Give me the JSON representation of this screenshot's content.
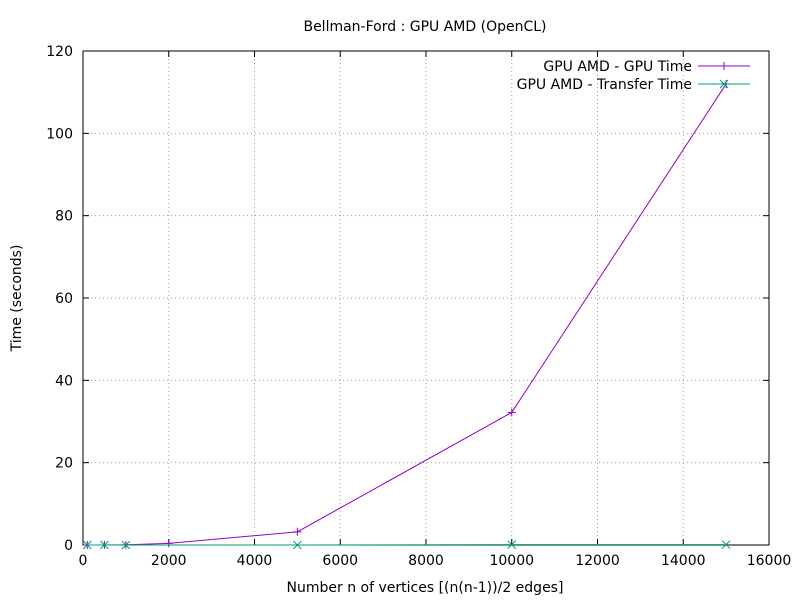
{
  "chart_data": {
    "type": "line",
    "title": "Bellman-Ford : GPU AMD (OpenCL)",
    "xlabel": "Number n of vertices [(n(n-1))/2 edges]",
    "ylabel": "Time (seconds)",
    "xlim": [
      0,
      16000
    ],
    "ylim": [
      0,
      120
    ],
    "x_ticks": [
      0,
      2000,
      4000,
      6000,
      8000,
      10000,
      12000,
      14000,
      16000
    ],
    "y_ticks": [
      0,
      20,
      40,
      60,
      80,
      100,
      120
    ],
    "grid": true,
    "legend_position": "top-right",
    "series": [
      {
        "name": "GPU AMD - GPU Time",
        "color": "#9400d3",
        "marker": "plus",
        "x": [
          100,
          500,
          1000,
          2000,
          5000,
          10000,
          15000
        ],
        "y": [
          0.0,
          0.01,
          0.05,
          0.4,
          3.2,
          32.2,
          112.0
        ]
      },
      {
        "name": "GPU AMD - Transfer Time",
        "color": "#009e73",
        "marker": "cross",
        "x": [
          100,
          500,
          1000,
          5000,
          10000,
          15000
        ],
        "y": [
          0.0,
          0.0,
          0.0,
          0.0,
          0.1,
          0.1
        ]
      }
    ]
  }
}
